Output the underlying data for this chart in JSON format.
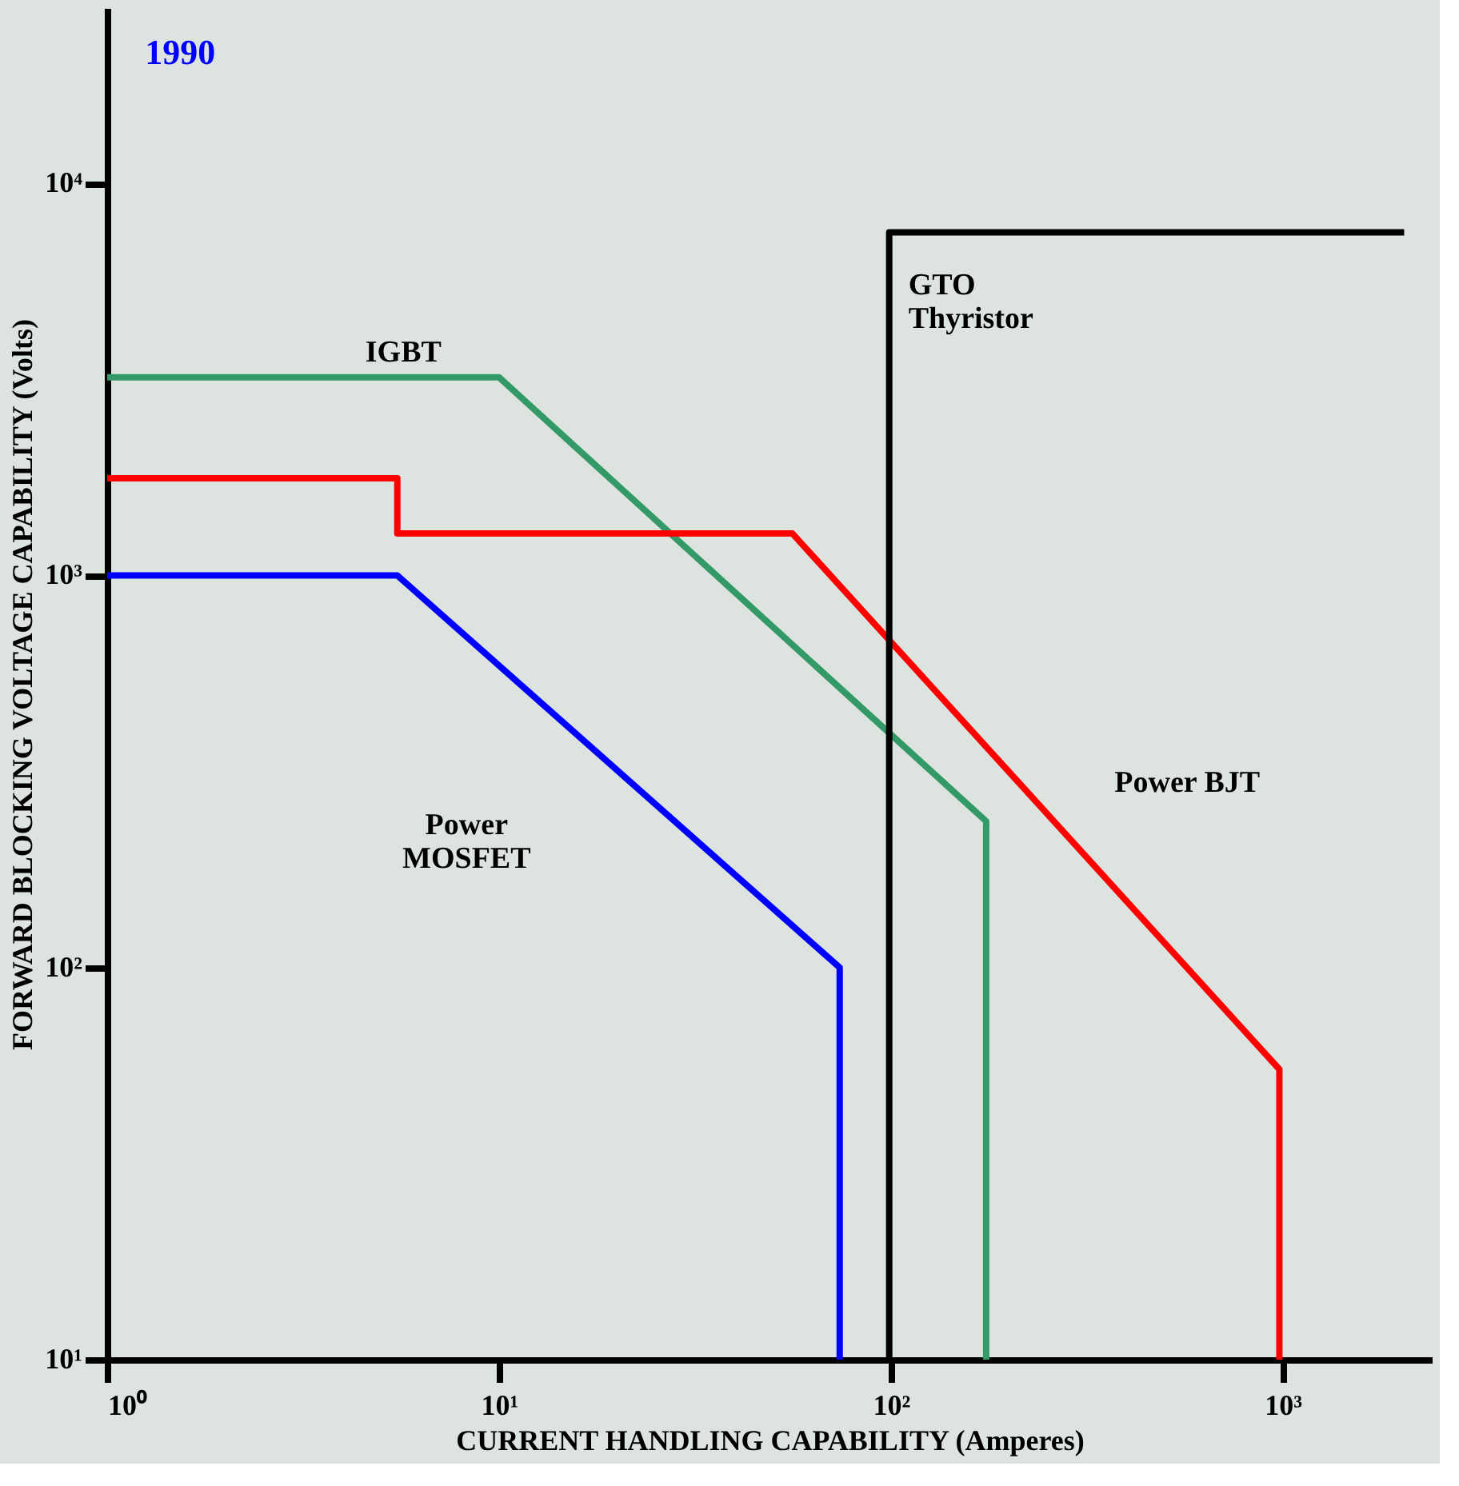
{
  "chart_data": {
    "type": "line",
    "title": "1990",
    "xlabel": "CURRENT HANDLING CAPABILITY (Amperes)",
    "ylabel": "FORWARD BLOCKING VOLTAGE CAPABILITY (Volts)",
    "log": "xy",
    "grid": false,
    "legend": false,
    "marker": "none",
    "line_style": "solid",
    "xlim": [
      1,
      2400
    ],
    "ylim": [
      10,
      28000
    ],
    "xticks": [
      {
        "value": 1,
        "label": "10⁰"
      },
      {
        "value": 10,
        "label": "10¹"
      },
      {
        "value": 100,
        "label": "10²"
      },
      {
        "value": 1000,
        "label": "10³"
      }
    ],
    "yticks": [
      {
        "value": 10,
        "label": "10¹"
      },
      {
        "value": 100,
        "label": "10²"
      },
      {
        "value": 1000,
        "label": "10³"
      },
      {
        "value": 10000,
        "label": "10⁴"
      }
    ],
    "series": [
      {
        "color": "#0000ff",
        "x": [
          1,
          5.5,
          74,
          74
        ],
        "values": [
          1000,
          1000,
          100,
          10
        ]
      },
      {
        "color": "#339966",
        "x": [
          1,
          10,
          175,
          175
        ],
        "values": [
          3200,
          3200,
          236,
          10
        ]
      },
      {
        "color": "#ff0000",
        "x": [
          1,
          5.5,
          5.5,
          56,
          980,
          980
        ],
        "values": [
          1770,
          1770,
          1280,
          1280,
          55,
          10
        ]
      },
      {
        "color": "#000000",
        "x": [
          99,
          99,
          2040
        ],
        "values": [
          10,
          7500,
          7500
        ]
      }
    ],
    "annotations": [
      {
        "text": "IGBT",
        "x": 5.7,
        "y": 3200
      },
      {
        "text": "GTO\nThyristor",
        "x": 99,
        "y": 5200
      },
      {
        "text": "Power BJT",
        "x": 345,
        "y": 179
      },
      {
        "text": "Power\nMOSFET",
        "x": 17.2,
        "y": 350
      }
    ]
  }
}
